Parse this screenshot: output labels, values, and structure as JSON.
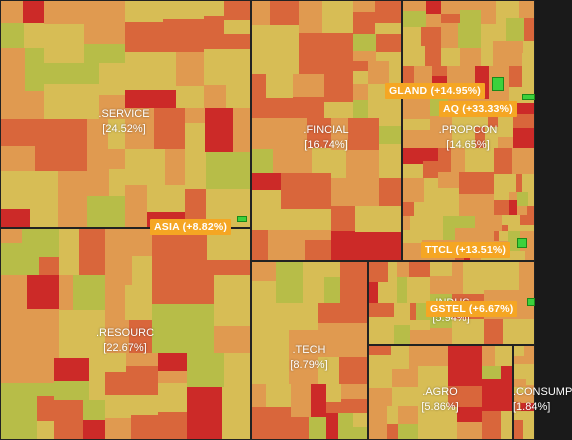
{
  "chart_data": {
    "type": "treemap",
    "sectors": [
      {
        "name": ".SERVICE",
        "change": "[24.52%]"
      },
      {
        "name": ".RESOURC",
        "change": "[22.67%]"
      },
      {
        "name": ".FINCIAL",
        "change": "[16.74%]"
      },
      {
        "name": ".PROPCON",
        "change": "[14.65%]"
      },
      {
        "name": ".TECH",
        "change": "[8.79%]"
      },
      {
        "name": ".INDUS",
        "change": "[5.94%]"
      },
      {
        "name": ".AGRO",
        "change": "[5.86%]"
      },
      {
        "name": ".CONSUMP",
        "change": "[1.84%]"
      }
    ],
    "highlights": [
      {
        "label": "GLAND (+14.95%)"
      },
      {
        "label": "AQ (+33.33%)"
      },
      {
        "label": "ASIA (+8.82%)"
      },
      {
        "label": "TTCL (+13.51%)"
      },
      {
        "label": "GSTEL (+6.67%)"
      }
    ],
    "colors": {
      "strong_down": "#cc2a28",
      "down": "#d9663b",
      "flat": "#e09a50",
      "neutral": "#d7bd55",
      "up": "#b7bd48",
      "strong_up": "#3cd13c",
      "tag": "#f5a623"
    }
  }
}
